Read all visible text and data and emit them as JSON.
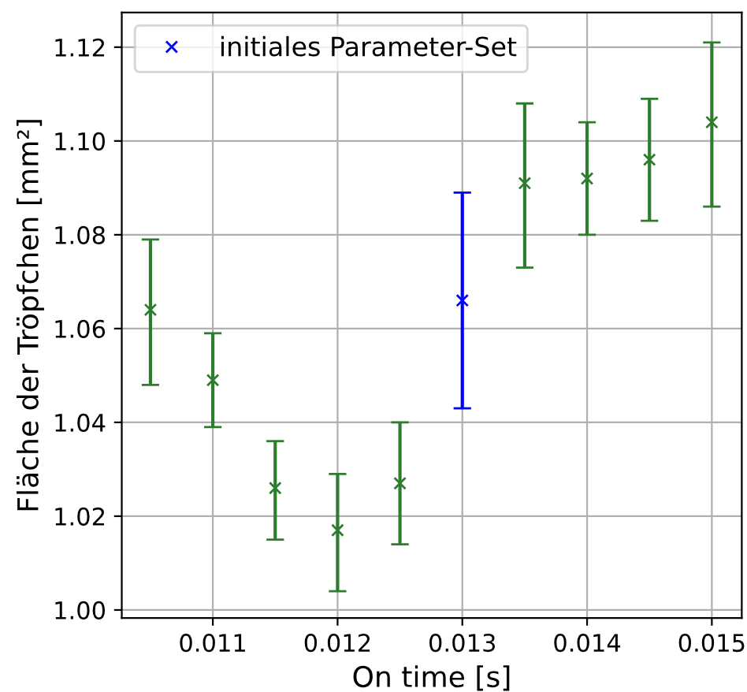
{
  "chart_data": {
    "type": "scatter",
    "xlabel": "On time [s]",
    "ylabel": "Fläche der Tröpfchen [mm²]",
    "series": [
      {
        "color": "#2e7d2e",
        "x": [
          0.0105,
          0.011,
          0.0115,
          0.012,
          0.0125,
          0.0135,
          0.014,
          0.0145,
          0.015
        ],
        "values": [
          1.064,
          1.049,
          1.026,
          1.017,
          1.027,
          1.091,
          1.092,
          1.096,
          1.104
        ],
        "errors": [
          [
            1.048,
            1.079
          ],
          [
            1.039,
            1.059
          ],
          [
            1.015,
            1.036
          ],
          [
            1.004,
            1.029
          ],
          [
            1.014,
            1.04
          ],
          [
            1.073,
            1.108
          ],
          [
            1.08,
            1.104
          ],
          [
            1.083,
            1.109
          ],
          [
            1.086,
            1.121
          ]
        ]
      },
      {
        "name": "initiales Parameter-Set",
        "color": "#0000ff",
        "x": [
          0.013
        ],
        "values": [
          1.066
        ],
        "errors": [
          [
            1.043,
            1.089
          ]
        ]
      }
    ],
    "xlim": [
      0.01027,
      0.01524
    ],
    "ylim": [
      0.9983,
      1.1274
    ],
    "xticks": [
      0.011,
      0.012,
      0.013,
      0.014,
      0.015
    ],
    "yticks": [
      {
        "value": 1.0,
        "label": "1.00"
      },
      {
        "value": 1.02,
        "label": "1.02"
      },
      {
        "value": 1.04,
        "label": "1.04"
      },
      {
        "value": 1.06,
        "label": "1.06"
      },
      {
        "value": 1.08,
        "label": "1.08"
      },
      {
        "value": 1.1,
        "label": "1.10"
      },
      {
        "value": 1.12,
        "label": "1.12"
      }
    ],
    "grid": true,
    "legend": "top left",
    "marker": "cross"
  }
}
